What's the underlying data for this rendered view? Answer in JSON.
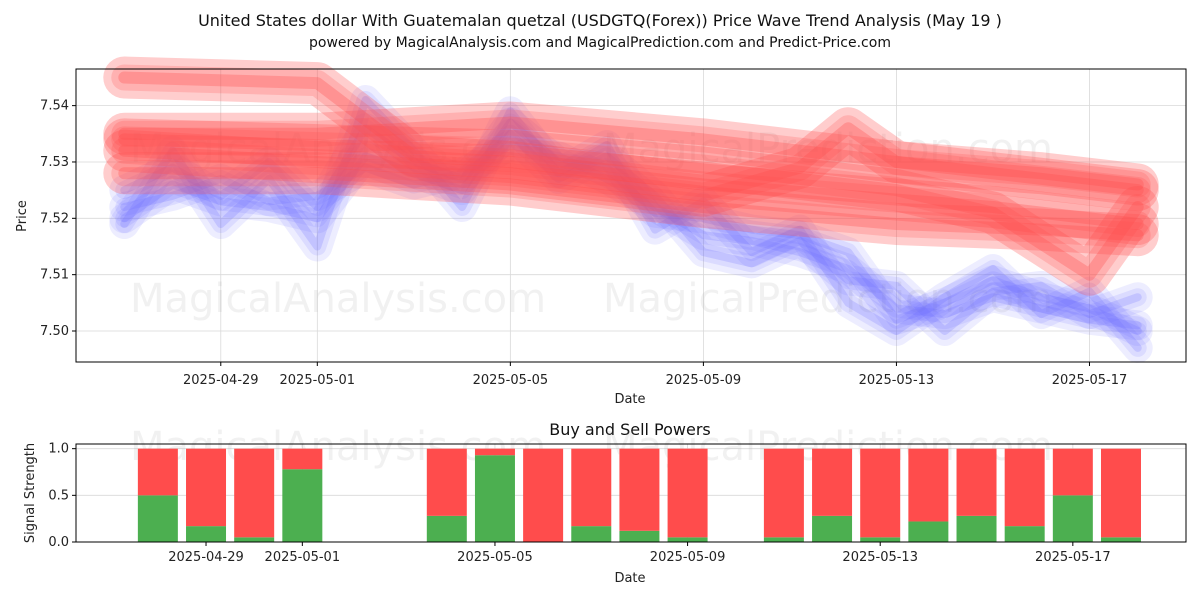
{
  "title": "United States dollar With Guatemalan quetzal (USDGTQ(Forex)) Price Wave Trend Analysis (May 19 )",
  "subtitle": "powered by MagicalAnalysis.com and MagicalPrediction.com and Predict-Price.com",
  "watermarks": [
    "MagicalAnalysis.com",
    "MagicalPrediction.com"
  ],
  "colors": {
    "buy": "#4caf50",
    "sell": "#ff4c4c",
    "wave_blue": "#6e6eff",
    "wave_red": "#ff4c4c"
  },
  "chart_data": [
    {
      "type": "line",
      "xlabel": "Date",
      "ylabel": "Price",
      "xlim": [
        "2025-04-26",
        "2025-05-19"
      ],
      "ylim": [
        7.4945,
        7.5465
      ],
      "yticks": [
        7.5,
        7.51,
        7.52,
        7.53,
        7.54
      ],
      "ytick_labels": [
        "7.50",
        "7.51",
        "7.52",
        "7.53",
        "7.54"
      ],
      "xticks": [
        "2025-04-29",
        "2025-05-01",
        "2025-05-05",
        "2025-05-09",
        "2025-05-13",
        "2025-05-17"
      ],
      "grid": true,
      "series": [
        {
          "color": "blue",
          "points": [
            [
              "2025-04-27",
              7.52
            ],
            [
              "2025-04-28",
              7.526
            ],
            [
              "2025-04-29",
              7.523
            ],
            [
              "2025-04-30",
              7.522
            ],
            [
              "2025-05-01",
              7.52
            ],
            [
              "2025-05-02",
              7.531
            ],
            [
              "2025-05-03",
              7.528
            ],
            [
              "2025-05-04",
              7.525
            ],
            [
              "2025-05-05",
              7.537
            ],
            [
              "2025-05-06",
              7.53
            ],
            [
              "2025-05-07",
              7.529
            ],
            [
              "2025-05-08",
              7.521
            ],
            [
              "2025-05-09",
              7.52
            ],
            [
              "2025-05-10",
              7.518
            ],
            [
              "2025-05-11",
              7.517
            ],
            [
              "2025-05-12",
              7.514
            ],
            [
              "2025-05-13",
              7.502
            ],
            [
              "2025-05-14",
              7.505
            ],
            [
              "2025-05-15",
              7.509
            ],
            [
              "2025-05-16",
              7.506
            ],
            [
              "2025-05-17",
              7.504
            ],
            [
              "2025-05-18",
              7.5
            ]
          ]
        },
        {
          "color": "blue",
          "points": [
            [
              "2025-04-27",
              7.519
            ],
            [
              "2025-04-28",
              7.532
            ],
            [
              "2025-04-29",
              7.519
            ],
            [
              "2025-04-30",
              7.527
            ],
            [
              "2025-05-01",
              7.515
            ],
            [
              "2025-05-02",
              7.541
            ],
            [
              "2025-05-03",
              7.532
            ],
            [
              "2025-05-04",
              7.522
            ],
            [
              "2025-05-05",
              7.539
            ],
            [
              "2025-05-06",
              7.528
            ],
            [
              "2025-05-07",
              7.533
            ],
            [
              "2025-05-08",
              7.518
            ],
            [
              "2025-05-09",
              7.523
            ],
            [
              "2025-05-10",
              7.514
            ],
            [
              "2025-05-11",
              7.518
            ],
            [
              "2025-05-12",
              7.505
            ],
            [
              "2025-05-13",
              7.5
            ],
            [
              "2025-05-14",
              7.506
            ],
            [
              "2025-05-15",
              7.511
            ],
            [
              "2025-05-16",
              7.503
            ],
            [
              "2025-05-17",
              7.507
            ],
            [
              "2025-05-18",
              7.497
            ]
          ]
        },
        {
          "color": "blue",
          "points": [
            [
              "2025-04-27",
              7.522
            ],
            [
              "2025-04-28",
              7.524
            ],
            [
              "2025-04-29",
              7.527
            ],
            [
              "2025-04-30",
              7.523
            ],
            [
              "2025-05-01",
              7.524
            ],
            [
              "2025-05-02",
              7.529
            ],
            [
              "2025-05-03",
              7.526
            ],
            [
              "2025-05-04",
              7.528
            ],
            [
              "2025-05-05",
              7.533
            ],
            [
              "2025-05-06",
              7.531
            ],
            [
              "2025-05-07",
              7.527
            ],
            [
              "2025-05-08",
              7.522
            ],
            [
              "2025-05-09",
              7.517
            ],
            [
              "2025-05-10",
              7.516
            ],
            [
              "2025-05-11",
              7.514
            ],
            [
              "2025-05-12",
              7.511
            ],
            [
              "2025-05-13",
              7.504
            ],
            [
              "2025-05-14",
              7.503
            ],
            [
              "2025-05-15",
              7.506
            ],
            [
              "2025-05-16",
              7.504
            ],
            [
              "2025-05-17",
              7.502
            ],
            [
              "2025-05-18",
              7.501
            ]
          ]
        },
        {
          "color": "blue",
          "points": [
            [
              "2025-04-27",
              7.525
            ],
            [
              "2025-04-28",
              7.529
            ],
            [
              "2025-04-29",
              7.524
            ],
            [
              "2025-04-30",
              7.53
            ],
            [
              "2025-05-01",
              7.522
            ],
            [
              "2025-05-02",
              7.536
            ],
            [
              "2025-05-03",
              7.53
            ],
            [
              "2025-05-04",
              7.527
            ],
            [
              "2025-05-05",
              7.535
            ],
            [
              "2025-05-06",
              7.527
            ],
            [
              "2025-05-07",
              7.531
            ],
            [
              "2025-05-08",
              7.524
            ],
            [
              "2025-05-09",
              7.514
            ],
            [
              "2025-05-10",
              7.512
            ],
            [
              "2025-05-11",
              7.516
            ],
            [
              "2025-05-12",
              7.509
            ],
            [
              "2025-05-13",
              7.508
            ],
            [
              "2025-05-14",
              7.5
            ],
            [
              "2025-05-15",
              7.507
            ],
            [
              "2025-05-16",
              7.508
            ],
            [
              "2025-05-17",
              7.503
            ],
            [
              "2025-05-18",
              7.506
            ]
          ]
        },
        {
          "color": "red",
          "points": [
            [
              "2025-04-27",
              7.535
            ],
            [
              "2025-05-01",
              7.535
            ],
            [
              "2025-05-05",
              7.537
            ],
            [
              "2025-05-09",
              7.534
            ],
            [
              "2025-05-13",
              7.53
            ],
            [
              "2025-05-18",
              7.525
            ]
          ]
        },
        {
          "color": "red",
          "points": [
            [
              "2025-04-27",
              7.545
            ],
            [
              "2025-05-01",
              7.544
            ],
            [
              "2025-05-03",
              7.531
            ],
            [
              "2025-05-05",
              7.53
            ],
            [
              "2025-05-09",
              7.526
            ],
            [
              "2025-05-12",
              7.524
            ],
            [
              "2025-05-15",
              7.522
            ],
            [
              "2025-05-18",
              7.519
            ]
          ]
        },
        {
          "color": "red",
          "points": [
            [
              "2025-04-27",
              7.532
            ],
            [
              "2025-05-01",
              7.53
            ],
            [
              "2025-05-05",
              7.528
            ],
            [
              "2025-05-09",
              7.524
            ],
            [
              "2025-05-11",
              7.529
            ],
            [
              "2025-05-12",
              7.536
            ],
            [
              "2025-05-13",
              7.53
            ],
            [
              "2025-05-16",
              7.528
            ],
            [
              "2025-05-18",
              7.526
            ]
          ]
        },
        {
          "color": "red",
          "points": [
            [
              "2025-04-27",
              7.534
            ],
            [
              "2025-05-01",
              7.533
            ],
            [
              "2025-05-05",
              7.532
            ],
            [
              "2025-05-09",
              7.529
            ],
            [
              "2025-05-13",
              7.525
            ],
            [
              "2025-05-15",
              7.521
            ],
            [
              "2025-05-17",
              7.51
            ],
            [
              "2025-05-18",
              7.522
            ]
          ]
        },
        {
          "color": "red",
          "points": [
            [
              "2025-04-27",
              7.528
            ],
            [
              "2025-05-01",
              7.528
            ],
            [
              "2025-05-05",
              7.526
            ],
            [
              "2025-05-09",
              7.522
            ],
            [
              "2025-05-13",
              7.519
            ],
            [
              "2025-05-16",
              7.518
            ],
            [
              "2025-05-18",
              7.517
            ]
          ]
        }
      ]
    },
    {
      "type": "bar",
      "stacked": true,
      "title": "Buy and Sell Powers",
      "xlabel": "Date",
      "ylabel": "Signal Strength",
      "ylim": [
        0,
        1.05
      ],
      "yticks": [
        0.0,
        0.5,
        1.0
      ],
      "ytick_labels": [
        "0.0",
        "0.5",
        "1.0"
      ],
      "xticks": [
        "2025-04-29",
        "2025-05-01",
        "2025-05-05",
        "2025-05-09",
        "2025-05-13",
        "2025-05-17"
      ],
      "grid": true,
      "categories": [
        "2025-04-28",
        "2025-04-29",
        "2025-04-30",
        "2025-05-01",
        "2025-05-04",
        "2025-05-05",
        "2025-05-06",
        "2025-05-07",
        "2025-05-08",
        "2025-05-09",
        "2025-05-11",
        "2025-05-12",
        "2025-05-13",
        "2025-05-14",
        "2025-05-15",
        "2025-05-16",
        "2025-05-17",
        "2025-05-18"
      ],
      "series": [
        {
          "role": "buy",
          "values": [
            0.5,
            0.17,
            0.05,
            0.78,
            0.28,
            0.93,
            0.0,
            0.17,
            0.12,
            0.05,
            0.05,
            0.28,
            0.05,
            0.22,
            0.28,
            0.17,
            0.5,
            0.05
          ]
        },
        {
          "role": "sell",
          "values": [
            0.5,
            0.83,
            0.95,
            0.22,
            0.72,
            0.07,
            1.0,
            0.83,
            0.88,
            0.95,
            0.95,
            0.72,
            0.95,
            0.78,
            0.72,
            0.83,
            0.5,
            0.95
          ]
        }
      ]
    }
  ]
}
